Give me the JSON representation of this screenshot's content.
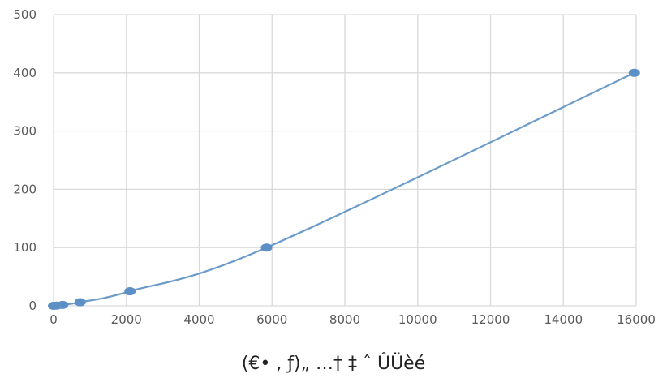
{
  "chart_data": {
    "type": "scatter",
    "title": "",
    "xlabel": "(€• , ƒ)„ …† ‡ ˆ ÛÜèé",
    "ylabel": "",
    "xlim": [
      0,
      16000
    ],
    "ylim": [
      0,
      500
    ],
    "x_ticks": [
      "0",
      "2000",
      "4000",
      "6000",
      "8000",
      "10000",
      "12000",
      "14000",
      "16000"
    ],
    "y_ticks": [
      "0",
      "100",
      "200",
      "300",
      "400",
      "500"
    ],
    "grid": true,
    "legend": "none",
    "trendline": "smooth",
    "series": [
      {
        "color": "#5b8fc6",
        "points": [
          {
            "x": 0,
            "y": 0
          },
          {
            "x": 90,
            "y": 0.4
          },
          {
            "x": 250,
            "y": 1.6
          },
          {
            "x": 730,
            "y": 6.2
          },
          {
            "x": 2100,
            "y": 25
          },
          {
            "x": 5850,
            "y": 100
          },
          {
            "x": 15950,
            "y": 400
          }
        ]
      }
    ]
  }
}
